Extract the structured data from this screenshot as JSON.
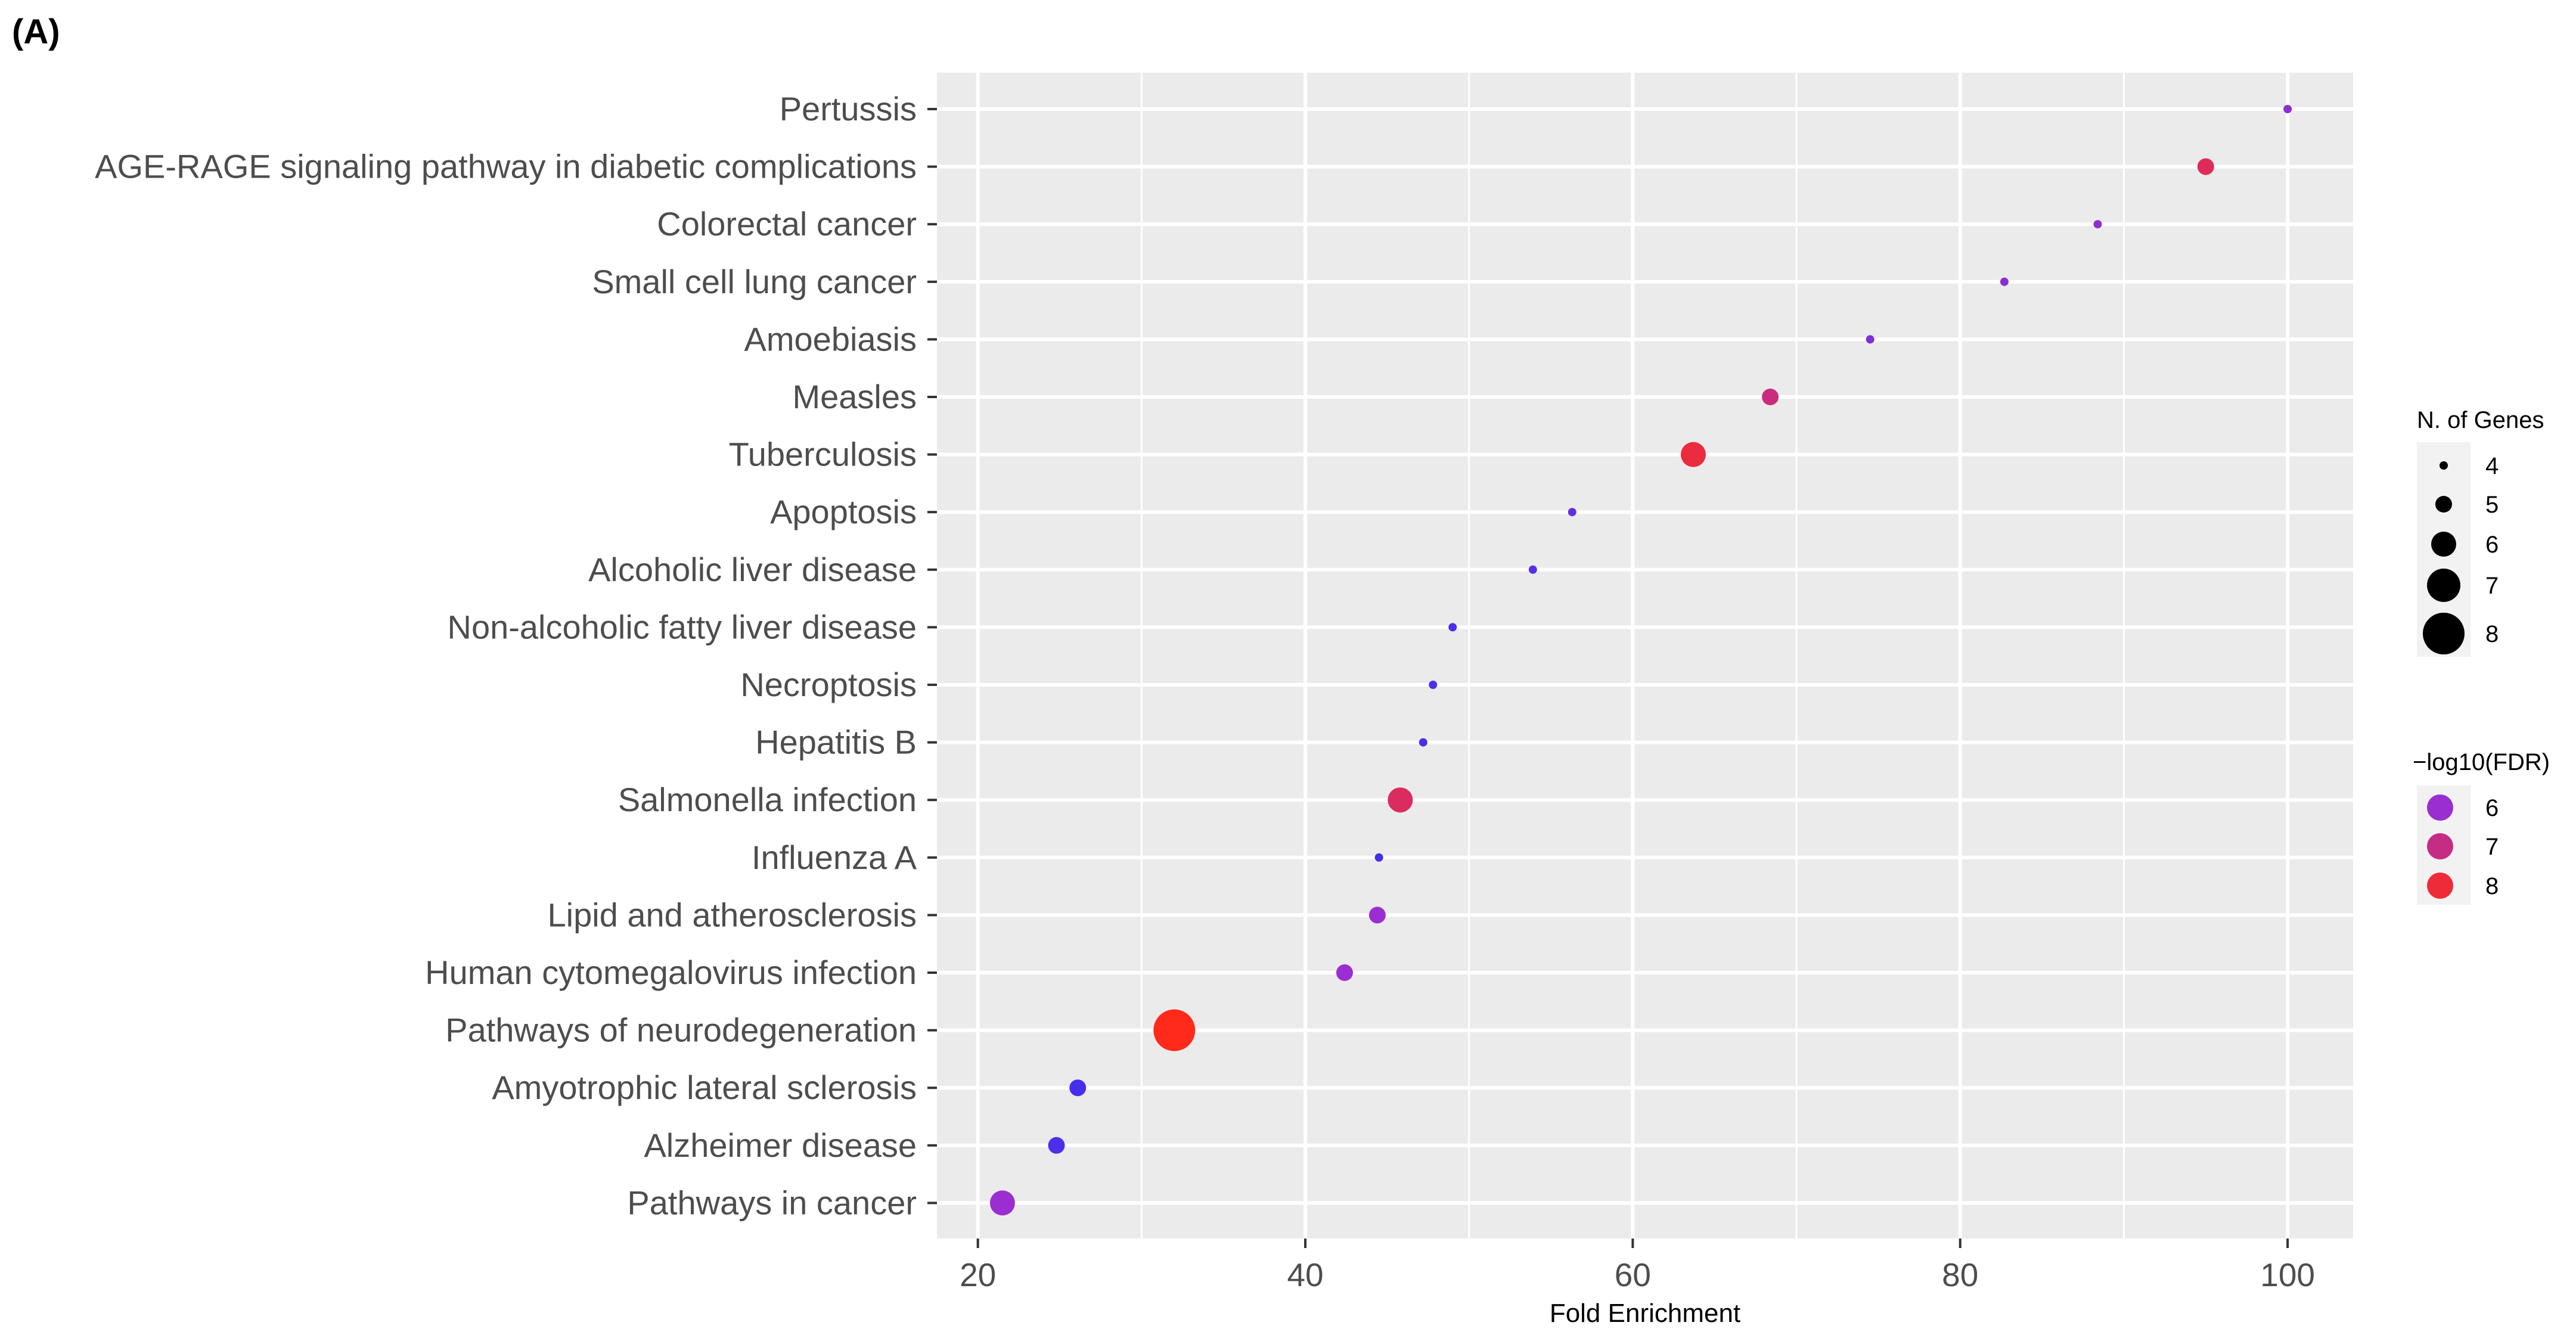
{
  "panel_label": "(A)",
  "chart_data": {
    "type": "scatter",
    "title": "",
    "xlabel": "Fold Enrichment",
    "ylabel": "",
    "xlim": [
      17.5,
      104
    ],
    "xticks": [
      20,
      40,
      60,
      80,
      100
    ],
    "grid": true,
    "categories": [
      "Pertussis",
      "AGE-RAGE signaling pathway in diabetic complications",
      "Colorectal cancer",
      "Small cell lung cancer",
      "Amoebiasis",
      "Measles",
      "Tuberculosis",
      "Apoptosis",
      "Alcoholic liver disease",
      "Non-alcoholic fatty liver disease",
      "Necroptosis",
      "Hepatitis B",
      "Salmonella infection",
      "Influenza A",
      "Lipid and atherosclerosis",
      "Human cytomegalovirus infection",
      "Pathways of neurodegeneration",
      "Amyotrophic lateral sclerosis",
      "Alzheimer disease",
      "Pathways in cancer"
    ],
    "points": [
      {
        "pathway": "Pertussis",
        "fold_enrichment": 100.0,
        "n_genes": 4,
        "neg_log10_fdr": 5.9
      },
      {
        "pathway": "AGE-RAGE signaling pathway in diabetic complications",
        "fold_enrichment": 95.0,
        "n_genes": 5,
        "neg_log10_fdr": 7.6
      },
      {
        "pathway": "Colorectal cancer",
        "fold_enrichment": 88.4,
        "n_genes": 4,
        "neg_log10_fdr": 5.9
      },
      {
        "pathway": "Small cell lung cancer",
        "fold_enrichment": 82.7,
        "n_genes": 4,
        "neg_log10_fdr": 5.8
      },
      {
        "pathway": "Amoebiasis",
        "fold_enrichment": 74.5,
        "n_genes": 4,
        "neg_log10_fdr": 5.7
      },
      {
        "pathway": "Measles",
        "fold_enrichment": 68.4,
        "n_genes": 5,
        "neg_log10_fdr": 7.1
      },
      {
        "pathway": "Tuberculosis",
        "fold_enrichment": 63.7,
        "n_genes": 6,
        "neg_log10_fdr": 7.9
      },
      {
        "pathway": "Apoptosis",
        "fold_enrichment": 56.3,
        "n_genes": 4,
        "neg_log10_fdr": 5.4
      },
      {
        "pathway": "Alcoholic liver disease",
        "fold_enrichment": 53.9,
        "n_genes": 4,
        "neg_log10_fdr": 5.3
      },
      {
        "pathway": "Non-alcoholic fatty liver disease",
        "fold_enrichment": 49.0,
        "n_genes": 4,
        "neg_log10_fdr": 5.2
      },
      {
        "pathway": "Necroptosis",
        "fold_enrichment": 47.8,
        "n_genes": 4,
        "neg_log10_fdr": 5.2
      },
      {
        "pathway": "Hepatitis B",
        "fold_enrichment": 47.2,
        "n_genes": 4,
        "neg_log10_fdr": 5.1
      },
      {
        "pathway": "Salmonella infection",
        "fold_enrichment": 45.8,
        "n_genes": 6,
        "neg_log10_fdr": 7.5
      },
      {
        "pathway": "Influenza A",
        "fold_enrichment": 44.5,
        "n_genes": 4,
        "neg_log10_fdr": 5.1
      },
      {
        "pathway": "Lipid and atherosclerosis",
        "fold_enrichment": 44.4,
        "n_genes": 5,
        "neg_log10_fdr": 6.0
      },
      {
        "pathway": "Human cytomegalovirus infection",
        "fold_enrichment": 42.4,
        "n_genes": 5,
        "neg_log10_fdr": 6.0
      },
      {
        "pathway": "Pathways of neurodegeneration",
        "fold_enrichment": 32.0,
        "n_genes": 8,
        "neg_log10_fdr": 8.4
      },
      {
        "pathway": "Amyotrophic lateral sclerosis",
        "fold_enrichment": 26.1,
        "n_genes": 5,
        "neg_log10_fdr": 5.1
      },
      {
        "pathway": "Alzheimer disease",
        "fold_enrichment": 24.8,
        "n_genes": 5,
        "neg_log10_fdr": 5.2
      },
      {
        "pathway": "Pathways in cancer",
        "fold_enrichment": 21.5,
        "n_genes": 6,
        "neg_log10_fdr": 6.0
      }
    ],
    "legend_size": {
      "title": "N. of Genes",
      "values": [
        4,
        5,
        6,
        7,
        8
      ],
      "labels": [
        "4",
        "5",
        "6",
        "7",
        "8"
      ]
    },
    "legend_color": {
      "title": "−log10(FDR)",
      "values": [
        6,
        7,
        8
      ],
      "labels": [
        "6",
        "7",
        "8"
      ]
    },
    "colors": {
      "panel_bg": "#ebebeb",
      "grid": "#ffffff",
      "low": "#3a2ff0",
      "mid": "#9b2ed0",
      "high": "#ff2a1a"
    }
  }
}
